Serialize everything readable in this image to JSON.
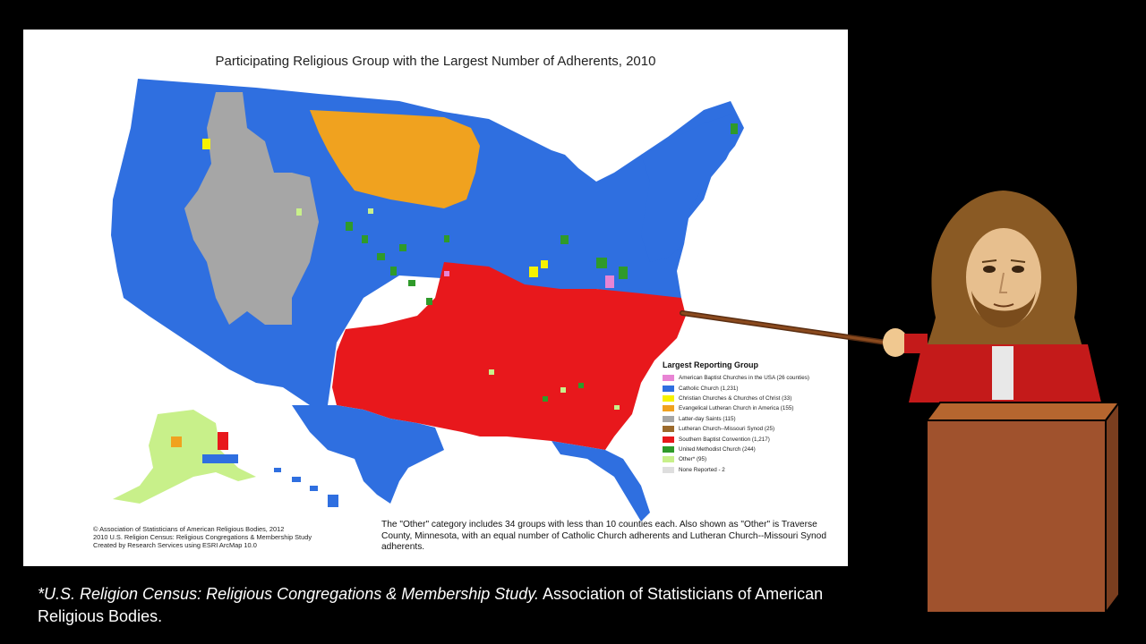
{
  "map": {
    "title": "Participating Religious Group with the Largest Number of Adherents, 2010",
    "legend_title": "Largest Reporting Group",
    "legend": [
      {
        "label": "American Baptist Churches in the USA (26 counties)",
        "color": "#e884d4"
      },
      {
        "label": "Catholic Church (1,231)",
        "color": "#2f6fe0"
      },
      {
        "label": "Christian Churches & Churches of Christ (33)",
        "color": "#f6f200"
      },
      {
        "label": "Evangelical Lutheran Church in America (155)",
        "color": "#f0a21f"
      },
      {
        "label": "Latter-day Saints (115)",
        "color": "#a6a6a6"
      },
      {
        "label": "Lutheran Church--Missouri Synod (25)",
        "color": "#9c6a2c"
      },
      {
        "label": "Southern Baptist Convention (1,217)",
        "color": "#e8181c"
      },
      {
        "label": "United Methodist Church (244)",
        "color": "#2f9a2a"
      },
      {
        "label": "Other* (95)",
        "color": "#c8f08a"
      },
      {
        "label": "None Reported - 2",
        "color": "#dedede"
      }
    ],
    "credits": [
      "© Association of Statisticians of American Religious Bodies, 2012",
      "2010 U.S. Religion Census: Religious Congregations & Membership Study",
      "Created by Research Services using ESRI ArcMap 10.0"
    ],
    "note": "The \"Other\" category includes 34 groups with less than 10 counties each. Also shown as \"Other\" is Traverse County, Minnesota, with an equal number of Catholic Church adherents and Lutheran Church--Missouri Synod adherents."
  },
  "citation": {
    "italic": "*U.S. Religion Census: Religious Congregations & Membership Study.",
    "rest": " Association of Statisticians of American Religious Bodies."
  }
}
